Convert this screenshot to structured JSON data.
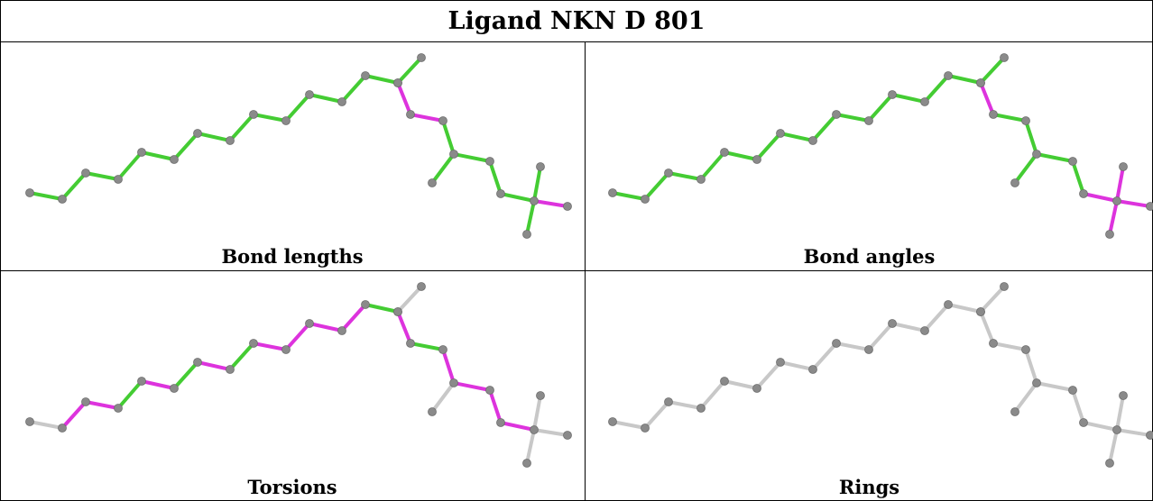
{
  "title": "Ligand NKN D 801",
  "panels": [
    {
      "caption": "Bond lengths"
    },
    {
      "caption": "Bond angles"
    },
    {
      "caption": "Torsions"
    },
    {
      "caption": "Rings"
    }
  ],
  "colors": {
    "green": "#44cc33",
    "magenta": "#dd33dd",
    "gray": "#c8c8c8",
    "atom": "#8a8a8a"
  },
  "bonds": [
    {
      "a": 0,
      "b": 1,
      "length": "green",
      "angle": "green",
      "torsion": "gray"
    },
    {
      "a": 1,
      "b": 2,
      "length": "green",
      "angle": "green",
      "torsion": "magenta"
    },
    {
      "a": 2,
      "b": 3,
      "length": "green",
      "angle": "green",
      "torsion": "magenta"
    },
    {
      "a": 3,
      "b": 4,
      "length": "green",
      "angle": "green",
      "torsion": "green"
    },
    {
      "a": 4,
      "b": 5,
      "length": "green",
      "angle": "green",
      "torsion": "magenta"
    },
    {
      "a": 5,
      "b": 6,
      "length": "green",
      "angle": "green",
      "torsion": "green"
    },
    {
      "a": 6,
      "b": 7,
      "length": "green",
      "angle": "green",
      "torsion": "magenta"
    },
    {
      "a": 7,
      "b": 8,
      "length": "green",
      "angle": "green",
      "torsion": "green"
    },
    {
      "a": 8,
      "b": 9,
      "length": "green",
      "angle": "green",
      "torsion": "magenta"
    },
    {
      "a": 9,
      "b": 10,
      "length": "green",
      "angle": "green",
      "torsion": "magenta"
    },
    {
      "a": 10,
      "b": 11,
      "length": "green",
      "angle": "green",
      "torsion": "magenta"
    },
    {
      "a": 11,
      "b": 12,
      "length": "green",
      "angle": "green",
      "torsion": "magenta"
    },
    {
      "a": 12,
      "b": 13,
      "length": "green",
      "angle": "green",
      "torsion": "green"
    },
    {
      "a": 13,
      "b": 14,
      "length": "green",
      "angle": "magenta",
      "torsion": "green"
    },
    {
      "a": 14,
      "b": 15,
      "length": "green",
      "angle": "green",
      "torsion": "gray"
    },
    {
      "a": 14,
      "b": 16,
      "length": "magenta",
      "angle": "magenta",
      "torsion": "magenta"
    },
    {
      "a": 16,
      "b": 17,
      "length": "magenta",
      "angle": "green",
      "torsion": "green"
    },
    {
      "a": 17,
      "b": 18,
      "length": "green",
      "angle": "green",
      "torsion": "magenta"
    },
    {
      "a": 18,
      "b": 19,
      "length": "green",
      "angle": "green",
      "torsion": "gray"
    },
    {
      "a": 18,
      "b": 20,
      "length": "green",
      "angle": "green",
      "torsion": "magenta"
    },
    {
      "a": 20,
      "b": 21,
      "length": "green",
      "angle": "green",
      "torsion": "magenta"
    },
    {
      "a": 21,
      "b": 22,
      "length": "green",
      "angle": "magenta",
      "torsion": "magenta"
    },
    {
      "a": 22,
      "b": 23,
      "length": "green",
      "angle": "magenta",
      "torsion": "gray"
    },
    {
      "a": 22,
      "b": 24,
      "length": "magenta",
      "angle": "magenta",
      "torsion": "gray"
    },
    {
      "a": 22,
      "b": 25,
      "length": "green",
      "angle": "magenta",
      "torsion": "gray"
    }
  ]
}
